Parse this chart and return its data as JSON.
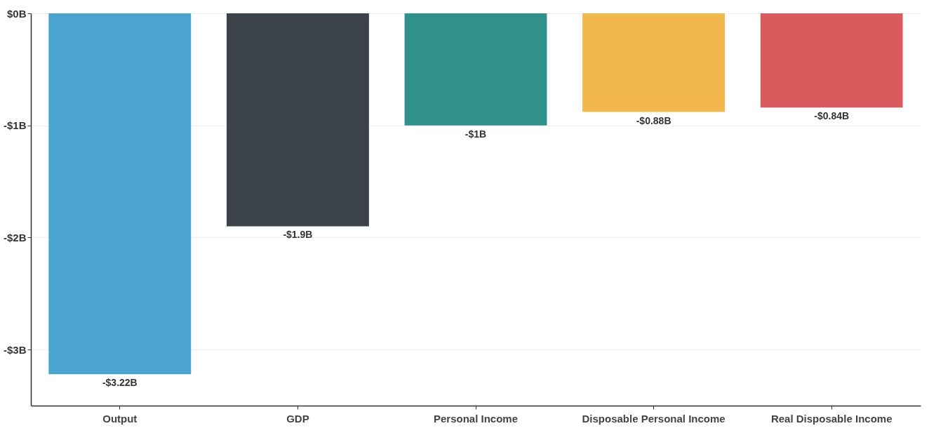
{
  "chart_data": {
    "type": "bar",
    "categories": [
      "Output",
      "GDP",
      "Personal Income",
      "Disposable Personal Income",
      "Real Disposable Income"
    ],
    "values": [
      -3.22,
      -1.9,
      -1,
      -0.88,
      -0.84
    ],
    "value_labels": [
      "-$3.22B",
      "-$1.9B",
      "-$1B",
      "-$0.88B",
      "-$0.84B"
    ],
    "colors": [
      "#4ba3d0",
      "#3b424a",
      "#30918a",
      "#f2b84b",
      "#d95b5d"
    ],
    "ylim": [
      -3.5,
      0
    ],
    "yticks": [
      {
        "value": 0,
        "label": "$0B"
      },
      {
        "value": -1,
        "label": "-$1B"
      },
      {
        "value": -2,
        "label": "-$2B"
      },
      {
        "value": -3,
        "label": "-$3B"
      }
    ],
    "grid": "y"
  }
}
